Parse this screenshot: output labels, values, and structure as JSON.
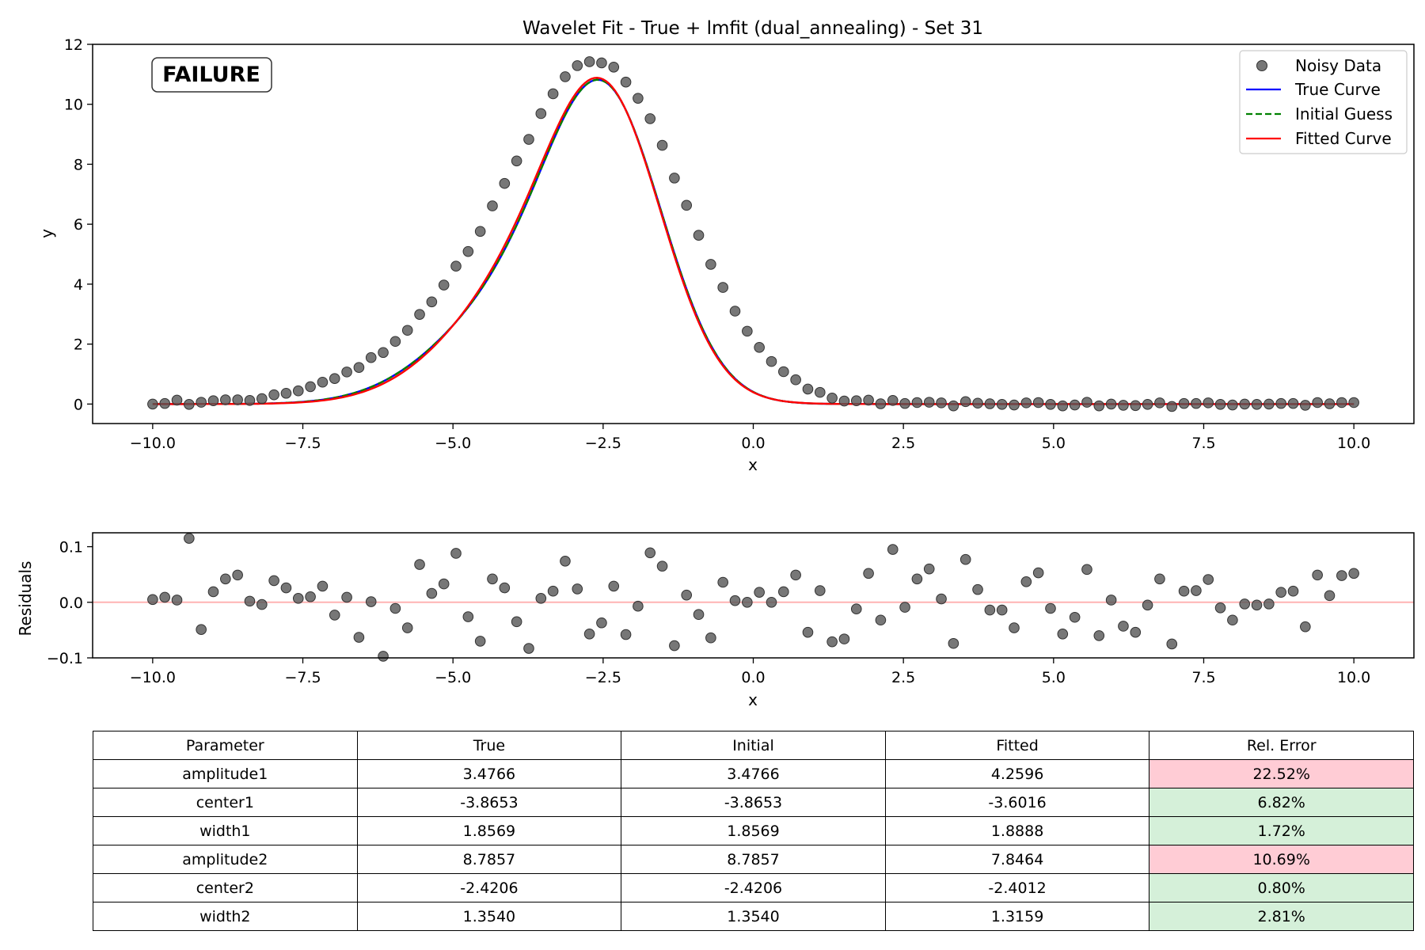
{
  "chart_data": [
    {
      "type": "scatter",
      "panel": "main",
      "title": "Wavelet Fit - True + lmfit (dual_annealing) - Set 31",
      "xlabel": "x",
      "ylabel": "y",
      "xlim": [
        -11.0,
        11.0
      ],
      "ylim": [
        -0.65,
        12.0
      ],
      "xticks": [
        -10.0,
        -7.5,
        -5.0,
        -2.5,
        0.0,
        2.5,
        5.0,
        7.5,
        10.0
      ],
      "xtick_labels": [
        "−10.0",
        "−7.5",
        "−5.0",
        "−2.5",
        "0.0",
        "2.5",
        "5.0",
        "7.5",
        "10.0"
      ],
      "yticks": [
        0,
        2,
        4,
        6,
        8,
        10,
        12
      ],
      "ytick_labels": [
        "0",
        "2",
        "4",
        "6",
        "8",
        "10",
        "12"
      ],
      "grid": false,
      "legend_position": "top-right",
      "annotation": "FAILURE",
      "annotation_color": "#ff0000",
      "series": [
        {
          "name": "Noisy Data",
          "kind": "points",
          "color": "#555555",
          "x_range": [
            -10,
            10
          ],
          "n_points": 100,
          "y": [
            0.0,
            0.02,
            0.13,
            -0.01,
            0.06,
            0.11,
            0.14,
            0.14,
            0.12,
            0.18,
            0.31,
            0.36,
            0.44,
            0.58,
            0.73,
            0.85,
            1.07,
            1.22,
            1.55,
            1.72,
            2.09,
            2.46,
            2.99,
            3.41,
            3.97,
            4.6,
            5.09,
            5.76,
            6.61,
            7.36,
            8.11,
            8.83,
            9.69,
            10.35,
            10.92,
            11.29,
            11.42,
            11.38,
            11.24,
            10.74,
            10.2,
            9.52,
            8.63,
            7.54,
            6.63,
            5.63,
            4.66,
            3.89,
            3.1,
            2.43,
            1.89,
            1.42,
            1.08,
            0.81,
            0.5,
            0.39,
            0.2,
            0.1,
            0.11,
            0.13,
            0.01,
            0.12,
            0.02,
            0.05,
            0.06,
            0.04,
            -0.06,
            0.08,
            0.03,
            0.01,
            -0.01,
            -0.03,
            0.04,
            0.05,
            -0.01,
            -0.06,
            -0.03,
            0.06,
            -0.06,
            0.0,
            -0.04,
            -0.05,
            -0.01,
            0.04,
            -0.08,
            0.02,
            0.02,
            0.04,
            -0.01,
            -0.03,
            -0.0,
            -0.01,
            -0.0,
            0.02,
            0.02,
            -0.04,
            0.05,
            0.01,
            0.05,
            0.05
          ]
        },
        {
          "name": "True Curve",
          "kind": "line",
          "color": "#0000ff",
          "dash": "solid"
        },
        {
          "name": "Initial Guess",
          "kind": "line",
          "color": "#008000",
          "dash": "dashed"
        },
        {
          "name": "Fitted Curve",
          "kind": "line",
          "color": "#ff0000",
          "dash": "solid"
        }
      ]
    },
    {
      "type": "scatter",
      "panel": "residuals",
      "xlabel": "x",
      "ylabel": "Residuals",
      "xlim": [
        -11.0,
        11.0
      ],
      "ylim": [
        -0.1,
        0.125
      ],
      "xticks": [
        -10.0,
        -7.5,
        -5.0,
        -2.5,
        0.0,
        2.5,
        5.0,
        7.5,
        10.0
      ],
      "xtick_labels": [
        "−10.0",
        "−7.5",
        "−5.0",
        "−2.5",
        "0.0",
        "2.5",
        "5.0",
        "7.5",
        "10.0"
      ],
      "yticks": [
        -0.1,
        0.0,
        0.1
      ],
      "ytick_labels": [
        "−0.1",
        "0.0",
        "0.1"
      ],
      "zero_line_color": "#ffb3b3",
      "grid": false,
      "series": [
        {
          "name": "Residuals",
          "kind": "points",
          "color": "#555555",
          "x_range": [
            -10,
            10
          ],
          "n_points": 100,
          "y": [
            0.005,
            0.009,
            0.004,
            0.115,
            -0.049,
            0.019,
            0.042,
            0.049,
            0.002,
            -0.004,
            0.039,
            0.026,
            0.007,
            0.01,
            0.029,
            -0.023,
            0.009,
            -0.063,
            0.001,
            -0.097,
            -0.011,
            -0.046,
            0.068,
            0.016,
            0.033,
            0.088,
            -0.026,
            -0.07,
            0.042,
            0.026,
            -0.035,
            -0.083,
            0.007,
            0.02,
            0.074,
            0.024,
            -0.057,
            -0.037,
            0.029,
            -0.058,
            -0.007,
            0.089,
            0.065,
            -0.078,
            0.013,
            -0.022,
            -0.064,
            0.036,
            0.003,
            0.0,
            0.018,
            0.0,
            0.019,
            0.049,
            -0.054,
            0.021,
            -0.071,
            -0.066,
            -0.012,
            0.052,
            -0.032,
            0.095,
            -0.009,
            0.042,
            0.06,
            0.006,
            -0.074,
            0.077,
            0.023,
            -0.014,
            -0.014,
            -0.046,
            0.037,
            0.053,
            -0.011,
            -0.057,
            -0.027,
            0.059,
            -0.06,
            0.004,
            -0.043,
            -0.054,
            -0.005,
            0.042,
            -0.075,
            0.02,
            0.021,
            0.041,
            -0.01,
            -0.032,
            -0.003,
            -0.005,
            -0.003,
            0.018,
            0.02,
            -0.044,
            0.049,
            0.012,
            0.048,
            0.052
          ]
        }
      ]
    },
    {
      "type": "table",
      "columns": [
        "Parameter",
        "True",
        "Initial",
        "Fitted",
        "Rel. Error"
      ],
      "rows": [
        [
          "amplitude1",
          "3.4766",
          "3.4766",
          "4.2596",
          "22.52%"
        ],
        [
          "center1",
          "-3.8653",
          "-3.8653",
          "-3.6016",
          "6.82%"
        ],
        [
          "width1",
          "1.8569",
          "1.8569",
          "1.8888",
          "1.72%"
        ],
        [
          "amplitude2",
          "8.7857",
          "8.7857",
          "7.8464",
          "10.69%"
        ],
        [
          "center2",
          "-2.4206",
          "-2.4206",
          "-2.4012",
          "0.80%"
        ],
        [
          "width2",
          "1.3540",
          "1.3540",
          "1.3159",
          "2.81%"
        ]
      ],
      "error_colors": [
        "#ffccd5",
        "#d5f0d9",
        "#d5f0d9",
        "#ffccd5",
        "#d5f0d9",
        "#d5f0d9"
      ]
    }
  ]
}
